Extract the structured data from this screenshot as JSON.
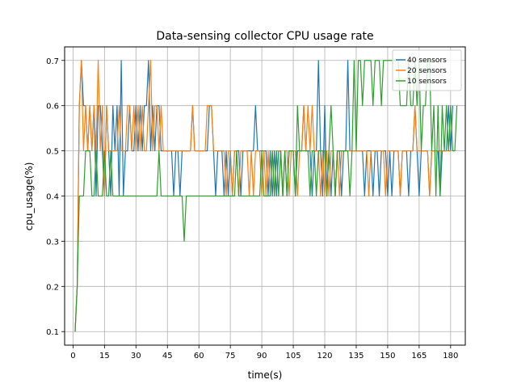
{
  "chart_data": {
    "type": "line",
    "title": "Data-sensing collector CPU usage rate",
    "xlabel": "time(s)",
    "ylabel": "cpu_usage(%)",
    "xlim": [
      -4,
      187
    ],
    "ylim": [
      0.07,
      0.73
    ],
    "xticks": [
      0,
      15,
      30,
      45,
      60,
      75,
      90,
      105,
      120,
      135,
      150,
      165,
      180
    ],
    "yticks": [
      0.1,
      0.2,
      0.3,
      0.4,
      0.5,
      0.6,
      0.7
    ],
    "grid": true,
    "legend_position": "top-right",
    "series": [
      {
        "name": "40 sensors",
        "color": "#1f77b4",
        "values": [
          0.1,
          0.2,
          0.6,
          0.7,
          0.6,
          0.6,
          0.5,
          0.6,
          0.5,
          0.6,
          0.4,
          0.6,
          0.6,
          0.5,
          0.4,
          0.6,
          0.5,
          0.4,
          0.6,
          0.5,
          0.6,
          0.4,
          0.7,
          0.4,
          0.5,
          0.5,
          0.6,
          0.5,
          0.5,
          0.6,
          0.5,
          0.6,
          0.5,
          0.6,
          0.6,
          0.7,
          0.5,
          0.6,
          0.5,
          0.6,
          0.6,
          0.5,
          0.5,
          0.5,
          0.5,
          0.5,
          0.5,
          0.4,
          0.5,
          0.5,
          0.4,
          0.5,
          0.5,
          0.5,
          0.5,
          0.5,
          0.6,
          0.5,
          0.5,
          0.5,
          0.5,
          0.5,
          0.5,
          0.5,
          0.6,
          0.6,
          0.5,
          0.4,
          0.5,
          0.5,
          0.5,
          0.4,
          0.5,
          0.4,
          0.5,
          0.4,
          0.5,
          0.5,
          0.5,
          0.4,
          0.5,
          0.5,
          0.5,
          0.5,
          0.5,
          0.5,
          0.6,
          0.5,
          0.5,
          0.5,
          0.5,
          0.5,
          0.4,
          0.5,
          0.4,
          0.5,
          0.4,
          0.5,
          0.5,
          0.4,
          0.5,
          0.4,
          0.5,
          0.5,
          0.5,
          0.4,
          0.5,
          0.5,
          0.5,
          0.6,
          0.5,
          0.5,
          0.5,
          0.4,
          0.5,
          0.5,
          0.7,
          0.5,
          0.4,
          0.6,
          0.4,
          0.5,
          0.4,
          0.5,
          0.4,
          0.5,
          0.5,
          0.4,
          0.5,
          0.5,
          0.7,
          0.5,
          0.5,
          0.5,
          0.5,
          0.5,
          0.5,
          0.5,
          0.4,
          0.5,
          0.5,
          0.5,
          0.4,
          0.5,
          0.5,
          0.4,
          0.5,
          0.5,
          0.5,
          0.4,
          0.5,
          0.4,
          0.5,
          0.5,
          0.5,
          0.4,
          0.5,
          0.5,
          0.5,
          0.4,
          0.5,
          0.5,
          0.6,
          0.5,
          0.4,
          0.5,
          0.5,
          0.5,
          0.5,
          0.4,
          0.5,
          0.5,
          0.5,
          0.5,
          0.4,
          0.5,
          0.5,
          0.5,
          0.6,
          0.5,
          0.6
        ]
      },
      {
        "name": "20 sensors",
        "color": "#ff7f0e",
        "values": [
          0.1,
          0.2,
          0.6,
          0.7,
          0.5,
          0.6,
          0.5,
          0.6,
          0.5,
          0.6,
          0.5,
          0.7,
          0.5,
          0.6,
          0.4,
          0.6,
          0.5,
          0.5,
          0.5,
          0.5,
          0.5,
          0.6,
          0.5,
          0.5,
          0.5,
          0.6,
          0.6,
          0.5,
          0.6,
          0.5,
          0.6,
          0.5,
          0.6,
          0.5,
          0.5,
          0.6,
          0.7,
          0.5,
          0.6,
          0.6,
          0.5,
          0.6,
          0.5,
          0.5,
          0.5,
          0.5,
          0.5,
          0.5,
          0.5,
          0.5,
          0.5,
          0.5,
          0.5,
          0.5,
          0.5,
          0.5,
          0.6,
          0.5,
          0.5,
          0.5,
          0.5,
          0.5,
          0.5,
          0.6,
          0.6,
          0.6,
          0.5,
          0.5,
          0.5,
          0.5,
          0.5,
          0.5,
          0.4,
          0.5,
          0.5,
          0.4,
          0.5,
          0.5,
          0.4,
          0.5,
          0.5,
          0.5,
          0.5,
          0.4,
          0.5,
          0.4,
          0.5,
          0.5,
          0.5,
          0.4,
          0.5,
          0.4,
          0.5,
          0.4,
          0.5,
          0.4,
          0.5,
          0.5,
          0.5,
          0.4,
          0.5,
          0.5,
          0.4,
          0.5,
          0.5,
          0.5,
          0.4,
          0.5,
          0.5,
          0.6,
          0.5,
          0.6,
          0.5,
          0.6,
          0.5,
          0.5,
          0.5,
          0.4,
          0.5,
          0.4,
          0.5,
          0.4,
          0.5,
          0.5,
          0.4,
          0.5,
          0.4,
          0.5,
          0.5,
          0.5,
          0.5,
          0.5,
          0.5,
          0.5,
          0.5,
          0.5,
          0.5,
          0.5,
          0.5,
          0.5,
          0.4,
          0.5,
          0.5,
          0.5,
          0.5,
          0.5,
          0.5,
          0.5,
          0.4,
          0.5,
          0.5,
          0.5,
          0.5,
          0.5,
          0.5,
          0.4,
          0.5,
          0.5,
          0.5,
          0.5,
          0.5,
          0.5,
          0.6,
          0.5,
          0.5,
          0.5,
          0.5,
          0.5,
          0.5,
          0.4,
          0.5,
          0.5,
          0.5,
          0.5,
          0.5,
          0.5,
          0.5,
          0.5,
          0.5,
          0.5
        ]
      },
      {
        "name": "10 sensors",
        "color": "#2ca02c",
        "values": [
          0.1,
          0.2,
          0.4,
          0.4,
          0.4,
          0.5,
          0.5,
          0.5,
          0.4,
          0.4,
          0.5,
          0.4,
          0.4,
          0.4,
          0.5,
          0.4,
          0.4,
          0.5,
          0.4,
          0.4,
          0.4,
          0.4,
          0.4,
          0.4,
          0.4,
          0.4,
          0.4,
          0.4,
          0.4,
          0.4,
          0.4,
          0.4,
          0.4,
          0.4,
          0.4,
          0.4,
          0.4,
          0.4,
          0.4,
          0.4,
          0.5,
          0.4,
          0.4,
          0.4,
          0.4,
          0.4,
          0.4,
          0.4,
          0.4,
          0.4,
          0.4,
          0.4,
          0.3,
          0.4,
          0.4,
          0.4,
          0.4,
          0.4,
          0.4,
          0.4,
          0.4,
          0.4,
          0.4,
          0.4,
          0.4,
          0.4,
          0.4,
          0.4,
          0.4,
          0.4,
          0.4,
          0.4,
          0.4,
          0.4,
          0.4,
          0.4,
          0.4,
          0.5,
          0.4,
          0.4,
          0.4,
          0.4,
          0.4,
          0.4,
          0.4,
          0.4,
          0.4,
          0.4,
          0.4,
          0.5,
          0.4,
          0.4,
          0.4,
          0.4,
          0.5,
          0.4,
          0.5,
          0.4,
          0.5,
          0.4,
          0.5,
          0.4,
          0.5,
          0.5,
          0.5,
          0.4,
          0.6,
          0.5,
          0.5,
          0.5,
          0.5,
          0.5,
          0.4,
          0.5,
          0.5,
          0.4,
          0.5,
          0.5,
          0.5,
          0.5,
          0.4,
          0.5,
          0.6,
          0.5,
          0.4,
          0.5,
          0.5,
          0.5,
          0.5,
          0.5,
          0.5,
          0.4,
          0.5,
          0.7,
          0.5,
          0.7,
          0.7,
          0.6,
          0.7,
          0.7,
          0.7,
          0.7,
          0.6,
          0.7,
          0.7,
          0.7,
          0.6,
          0.7,
          0.7,
          0.7,
          0.7,
          0.7,
          0.7,
          0.7,
          0.7,
          0.6,
          0.6,
          0.6,
          0.6,
          0.7,
          0.6,
          0.6,
          0.7,
          0.6,
          0.7,
          0.5,
          0.6,
          0.6,
          0.7,
          0.7,
          0.5,
          0.6,
          0.4,
          0.6,
          0.4,
          0.6,
          0.5,
          0.6,
          0.5,
          0.6,
          0.5,
          0.5,
          0.6
        ]
      }
    ]
  }
}
